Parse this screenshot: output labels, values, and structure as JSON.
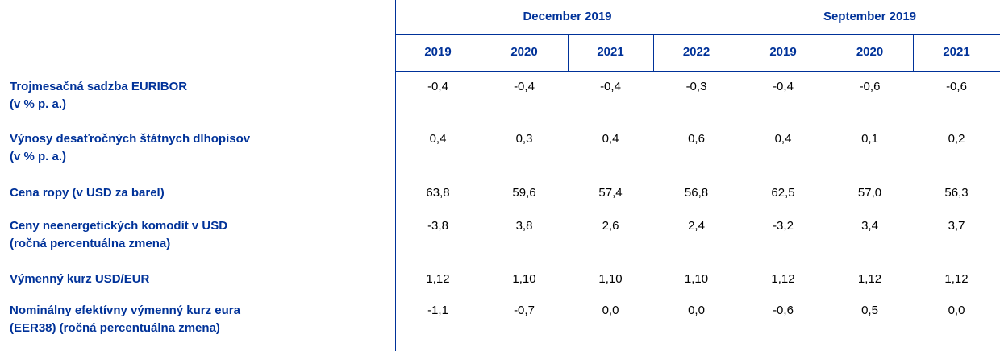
{
  "header": {
    "groups": [
      {
        "label": "December 2019",
        "years": [
          "2019",
          "2020",
          "2021",
          "2022"
        ]
      },
      {
        "label": "September 2019",
        "years": [
          "2019",
          "2020",
          "2021"
        ]
      }
    ]
  },
  "table": {
    "rows": [
      {
        "label": [
          "Trojmesačná sadzba EURIBOR",
          "(v % p. a.)"
        ],
        "values": [
          "-0,4",
          "-0,4",
          "-0,4",
          "-0,3",
          "-0,4",
          "-0,6",
          "-0,6"
        ]
      },
      {
        "label": [
          "Výnosy desaťročných štátnych dlhopisov",
          "(v % p. a.)"
        ],
        "values": [
          "0,4",
          "0,3",
          "0,4",
          "0,6",
          "0,4",
          "0,1",
          "0,2"
        ]
      },
      {
        "label": [
          "Cena ropy (v USD za barel)"
        ],
        "values": [
          "63,8",
          "59,6",
          "57,4",
          "56,8",
          "62,5",
          "57,0",
          "56,3"
        ]
      },
      {
        "label": [
          "Ceny neenergetických komodít v USD",
          "(ročná percentuálna zmena)"
        ],
        "values": [
          "-3,8",
          "3,8",
          "2,6",
          "2,4",
          "-3,2",
          "3,4",
          "3,7"
        ]
      },
      {
        "label": [
          "Výmenný kurz USD/EUR"
        ],
        "values": [
          "1,12",
          "1,10",
          "1,10",
          "1,10",
          "1,12",
          "1,12",
          "1,12"
        ]
      },
      {
        "label": [
          "Nominálny efektívny výmenný kurz eura",
          "(EER38) (ročná percentuálna zmena)"
        ],
        "values": [
          "-1,1",
          "-0,7",
          "0,0",
          "0,0",
          "-0,6",
          "0,5",
          "0,0"
        ]
      }
    ]
  }
}
